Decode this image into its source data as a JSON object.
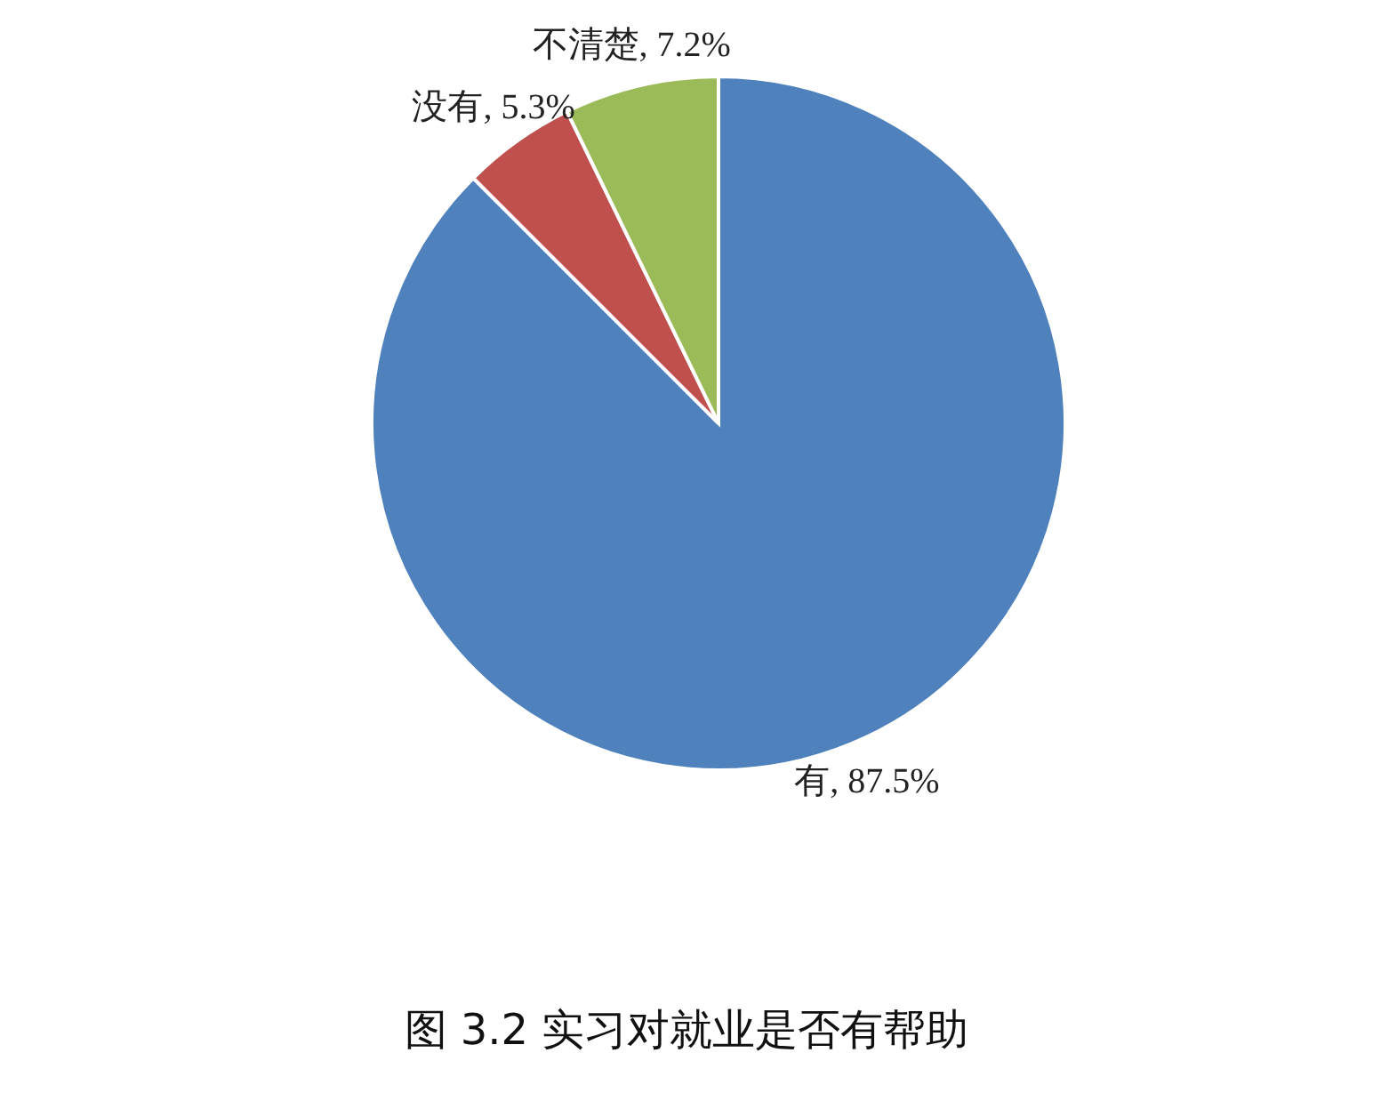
{
  "chart_data": {
    "type": "pie",
    "title": "图 3.2  实习对就业是否有帮助",
    "categories": [
      "有",
      "没有",
      "不清楚"
    ],
    "values": [
      87.5,
      5.3,
      7.2
    ],
    "colors": [
      "#4f81bd",
      "#c0504d",
      "#9bbb59"
    ],
    "value_labels": [
      "87.5%",
      "5.3%",
      "7.2%"
    ]
  }
}
